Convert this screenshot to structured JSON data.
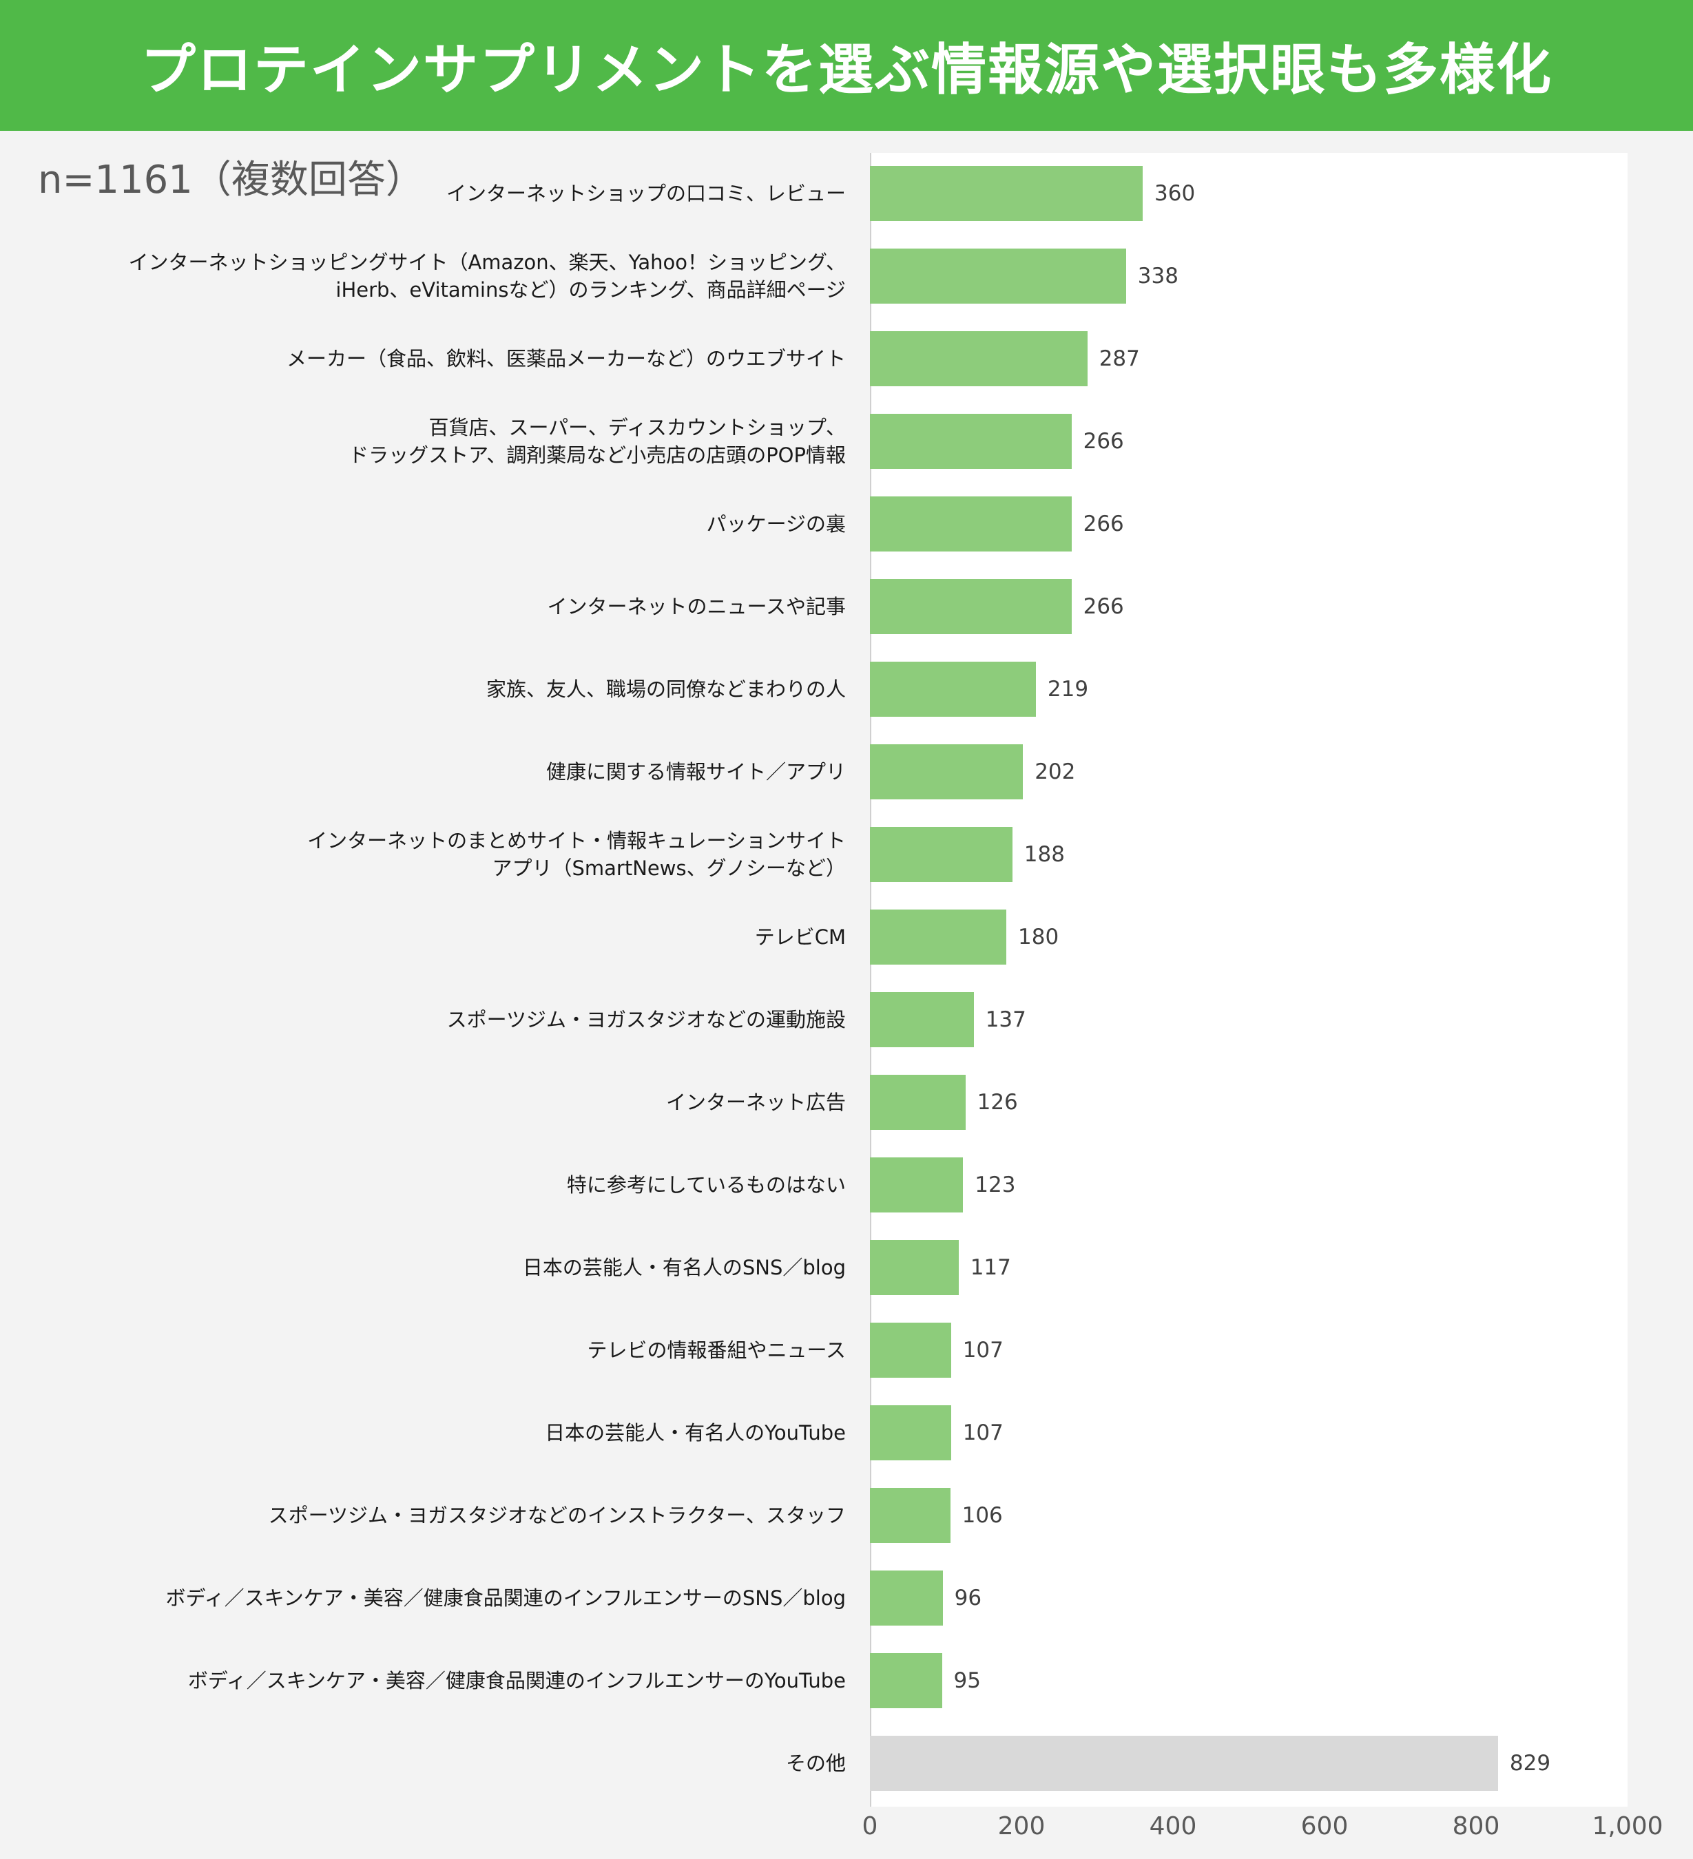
{
  "header": {
    "title": "プロテインサプリメントを選ぶ情報源や選択眼も多様化"
  },
  "note": "n=1161（複数回答）",
  "colors": {
    "banner": "#50b948",
    "bar": "#8dcc7b",
    "other_bar": "#d9d9d9"
  },
  "chart_data": {
    "type": "bar",
    "orientation": "horizontal",
    "xlim": [
      0,
      1000
    ],
    "xticks": [
      "0",
      "200",
      "400",
      "600",
      "800",
      "1,000"
    ],
    "categories": [
      [
        "インターネットショップの口コミ、レビュー"
      ],
      [
        "インターネットショッピングサイト（Amazon、楽天、Yahoo！ショッピング、",
        "iHerb、eVitaminsなど）のランキング、商品詳細ページ"
      ],
      [
        "メーカー（食品、飲料、医薬品メーカーなど）のウエブサイト"
      ],
      [
        "百貨店、スーパー、ディスカウントショップ、",
        "ドラッグストア、調剤薬局など小売店の店頭のPOP情報"
      ],
      [
        "パッケージの裏"
      ],
      [
        "インターネットのニュースや記事"
      ],
      [
        "家族、友人、職場の同僚などまわりの人"
      ],
      [
        "健康に関する情報サイト／アプリ"
      ],
      [
        "インターネットのまとめサイト・情報キュレーションサイト",
        "アプリ（SmartNews、グノシーなど）"
      ],
      [
        "テレビCM"
      ],
      [
        "スポーツジム・ヨガスタジオなどの運動施設"
      ],
      [
        "インターネット広告"
      ],
      [
        "特に参考にしているものはない"
      ],
      [
        "日本の芸能人・有名人のSNS／blog"
      ],
      [
        "テレビの情報番組やニュース"
      ],
      [
        "日本の芸能人・有名人のYouTube"
      ],
      [
        "スポーツジム・ヨガスタジオなどのインストラクター、スタッフ"
      ],
      [
        "ボディ／スキンケア・美容／健康食品関連のインフルエンサーのSNS／blog"
      ],
      [
        "ボディ／スキンケア・美容／健康食品関連のインフルエンサーのYouTube"
      ],
      [
        "その他"
      ]
    ],
    "values": [
      360,
      338,
      287,
      266,
      266,
      266,
      219,
      202,
      188,
      180,
      137,
      126,
      123,
      117,
      107,
      107,
      106,
      96,
      95,
      829
    ]
  }
}
